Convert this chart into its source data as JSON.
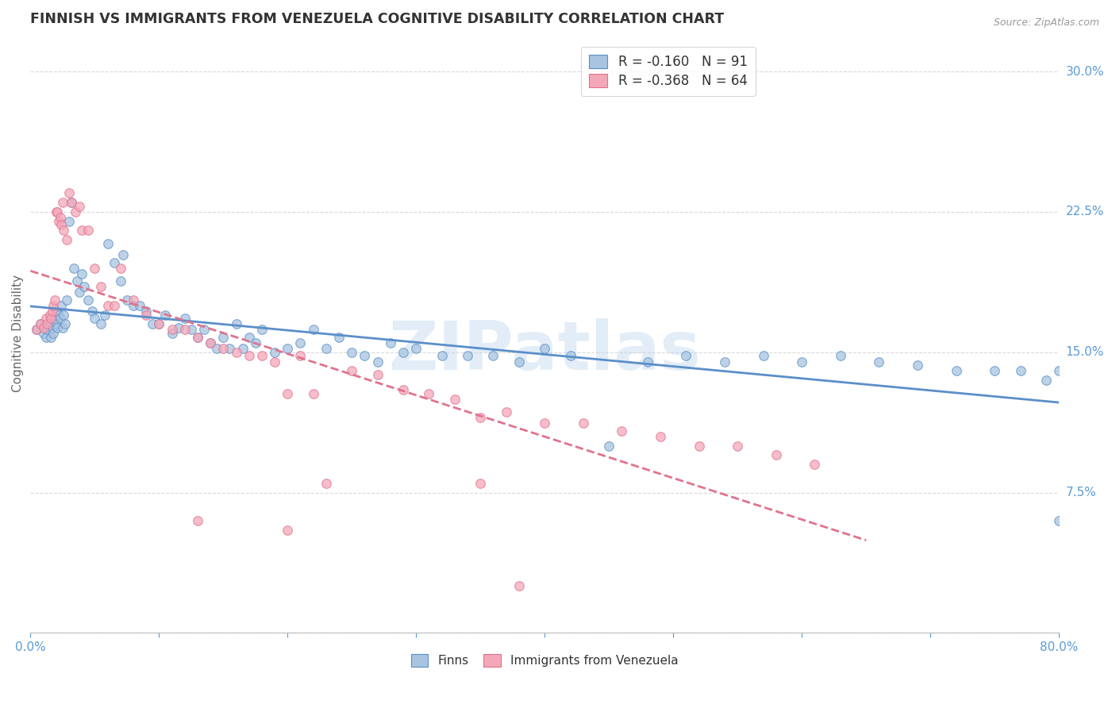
{
  "title": "FINNISH VS IMMIGRANTS FROM VENEZUELA COGNITIVE DISABILITY CORRELATION CHART",
  "source": "Source: ZipAtlas.com",
  "ylabel": "Cognitive Disability",
  "watermark": "ZIPatlas",
  "xlim": [
    0.0,
    0.8
  ],
  "ylim": [
    0.0,
    0.32
  ],
  "xticks": [
    0.0,
    0.1,
    0.2,
    0.3,
    0.4,
    0.5,
    0.6,
    0.7,
    0.8
  ],
  "xticklabels": [
    "0.0%",
    "",
    "",
    "",
    "",
    "",
    "",
    "",
    "80.0%"
  ],
  "yticks": [
    0.0,
    0.075,
    0.15,
    0.225,
    0.3
  ],
  "yticklabels": [
    "",
    "7.5%",
    "15.0%",
    "22.5%",
    "30.0%"
  ],
  "legend_r1": "R = -0.160   N = 91",
  "legend_r2": "R = -0.368   N = 64",
  "color_finns": "#a8c4e0",
  "color_venezuela": "#f4a7b9",
  "color_line_finns": "#5b8fc9",
  "color_line_venezuela": "#e0738e",
  "color_title": "#333333",
  "color_yticks": "#5b9bd5",
  "color_xticks": "#5b9bd5",
  "background_color": "#ffffff",
  "grid_color": "#d9d9d9",
  "scatter_size": 70,
  "scatter_alpha": 0.75,
  "finns_x": [
    0.005,
    0.008,
    0.01,
    0.012,
    0.013,
    0.015,
    0.016,
    0.017,
    0.018,
    0.019,
    0.02,
    0.02,
    0.021,
    0.022,
    0.023,
    0.024,
    0.025,
    0.026,
    0.027,
    0.028,
    0.03,
    0.032,
    0.034,
    0.036,
    0.038,
    0.04,
    0.042,
    0.045,
    0.048,
    0.05,
    0.055,
    0.058,
    0.06,
    0.065,
    0.07,
    0.072,
    0.075,
    0.08,
    0.085,
    0.09,
    0.095,
    0.1,
    0.105,
    0.11,
    0.115,
    0.12,
    0.125,
    0.13,
    0.135,
    0.14,
    0.145,
    0.15,
    0.155,
    0.16,
    0.165,
    0.17,
    0.175,
    0.18,
    0.19,
    0.2,
    0.21,
    0.22,
    0.23,
    0.24,
    0.25,
    0.26,
    0.27,
    0.28,
    0.29,
    0.3,
    0.32,
    0.34,
    0.36,
    0.38,
    0.4,
    0.42,
    0.45,
    0.48,
    0.51,
    0.54,
    0.57,
    0.6,
    0.63,
    0.66,
    0.69,
    0.72,
    0.75,
    0.77,
    0.79,
    0.8,
    0.8
  ],
  "finns_y": [
    0.162,
    0.165,
    0.16,
    0.158,
    0.162,
    0.165,
    0.158,
    0.163,
    0.16,
    0.168,
    0.172,
    0.165,
    0.163,
    0.17,
    0.168,
    0.175,
    0.163,
    0.17,
    0.165,
    0.178,
    0.22,
    0.23,
    0.195,
    0.188,
    0.182,
    0.192,
    0.185,
    0.178,
    0.172,
    0.168,
    0.165,
    0.17,
    0.208,
    0.198,
    0.188,
    0.202,
    0.178,
    0.175,
    0.175,
    0.172,
    0.165,
    0.165,
    0.17,
    0.16,
    0.163,
    0.168,
    0.162,
    0.158,
    0.162,
    0.155,
    0.152,
    0.158,
    0.152,
    0.165,
    0.152,
    0.158,
    0.155,
    0.162,
    0.15,
    0.152,
    0.155,
    0.162,
    0.152,
    0.158,
    0.15,
    0.148,
    0.145,
    0.155,
    0.15,
    0.152,
    0.148,
    0.148,
    0.148,
    0.145,
    0.152,
    0.148,
    0.1,
    0.145,
    0.148,
    0.145,
    0.148,
    0.145,
    0.148,
    0.145,
    0.143,
    0.14,
    0.14,
    0.14,
    0.135,
    0.14,
    0.06
  ],
  "venezuela_x": [
    0.005,
    0.008,
    0.01,
    0.012,
    0.013,
    0.015,
    0.016,
    0.017,
    0.018,
    0.019,
    0.02,
    0.021,
    0.022,
    0.023,
    0.024,
    0.025,
    0.026,
    0.028,
    0.03,
    0.032,
    0.035,
    0.038,
    0.04,
    0.045,
    0.05,
    0.055,
    0.06,
    0.065,
    0.07,
    0.08,
    0.09,
    0.1,
    0.11,
    0.12,
    0.13,
    0.14,
    0.15,
    0.16,
    0.17,
    0.18,
    0.19,
    0.2,
    0.21,
    0.22,
    0.23,
    0.25,
    0.27,
    0.29,
    0.31,
    0.33,
    0.35,
    0.37,
    0.4,
    0.43,
    0.46,
    0.49,
    0.52,
    0.55,
    0.58,
    0.61,
    0.35,
    0.2,
    0.13,
    0.38
  ],
  "venezuela_y": [
    0.162,
    0.165,
    0.163,
    0.168,
    0.165,
    0.17,
    0.168,
    0.172,
    0.175,
    0.178,
    0.225,
    0.225,
    0.22,
    0.222,
    0.218,
    0.23,
    0.215,
    0.21,
    0.235,
    0.23,
    0.225,
    0.228,
    0.215,
    0.215,
    0.195,
    0.185,
    0.175,
    0.175,
    0.195,
    0.178,
    0.17,
    0.165,
    0.162,
    0.162,
    0.158,
    0.155,
    0.152,
    0.15,
    0.148,
    0.148,
    0.145,
    0.128,
    0.148,
    0.128,
    0.08,
    0.14,
    0.138,
    0.13,
    0.128,
    0.125,
    0.115,
    0.118,
    0.112,
    0.112,
    0.108,
    0.105,
    0.1,
    0.1,
    0.095,
    0.09,
    0.08,
    0.055,
    0.06,
    0.025
  ]
}
